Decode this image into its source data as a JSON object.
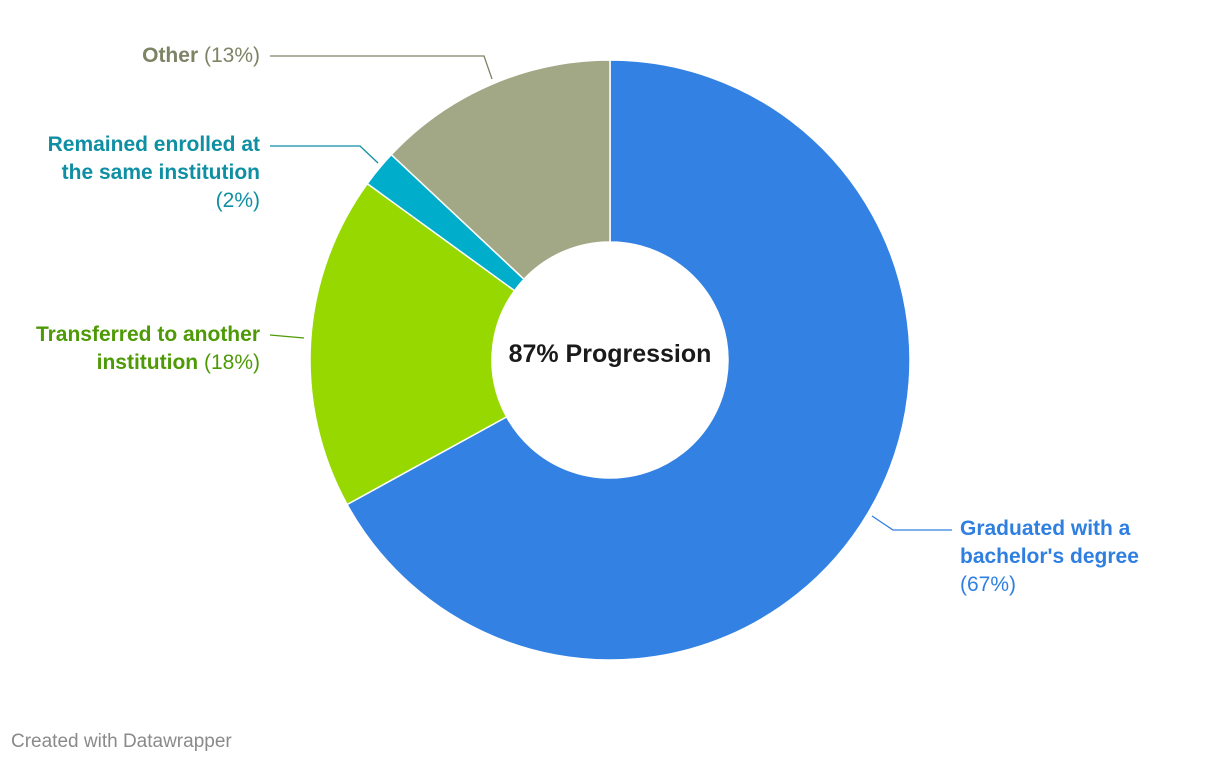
{
  "chart_data": {
    "type": "pie",
    "style": "donut",
    "center_label": "87% Progression",
    "slices": [
      {
        "label": "Graduated with a bachelor's degree",
        "value": 67,
        "display": "(67%)",
        "color": "#3281e3",
        "text_color": "#2f7fe0"
      },
      {
        "label": "Transferred to another institution",
        "value": 18,
        "display": "(18%)",
        "color": "#96d800",
        "text_color": "#4e9a06"
      },
      {
        "label": "Remained enrolled at the same institution",
        "value": 2,
        "display": "(2%)",
        "color": "#00aecc",
        "text_color": "#0f8fa3"
      },
      {
        "label": "Other",
        "value": 13,
        "display": "(13%)",
        "color": "#a2a886",
        "text_color": "#7d8365"
      }
    ]
  },
  "labels": {
    "other_name": "Other",
    "other_pct": "(13%)",
    "enrolled_line1": "Remained enrolled at",
    "enrolled_line2": "the same institution",
    "enrolled_pct": "(2%)",
    "transferred_line1": "Transferred to another",
    "transferred_line2": "institution",
    "transferred_pct": "(18%)",
    "graduated_line1": "Graduated with a",
    "graduated_line2": "bachelor's degree",
    "graduated_pct": "(67%)"
  },
  "footer": {
    "credit": "Created with Datawrapper"
  }
}
